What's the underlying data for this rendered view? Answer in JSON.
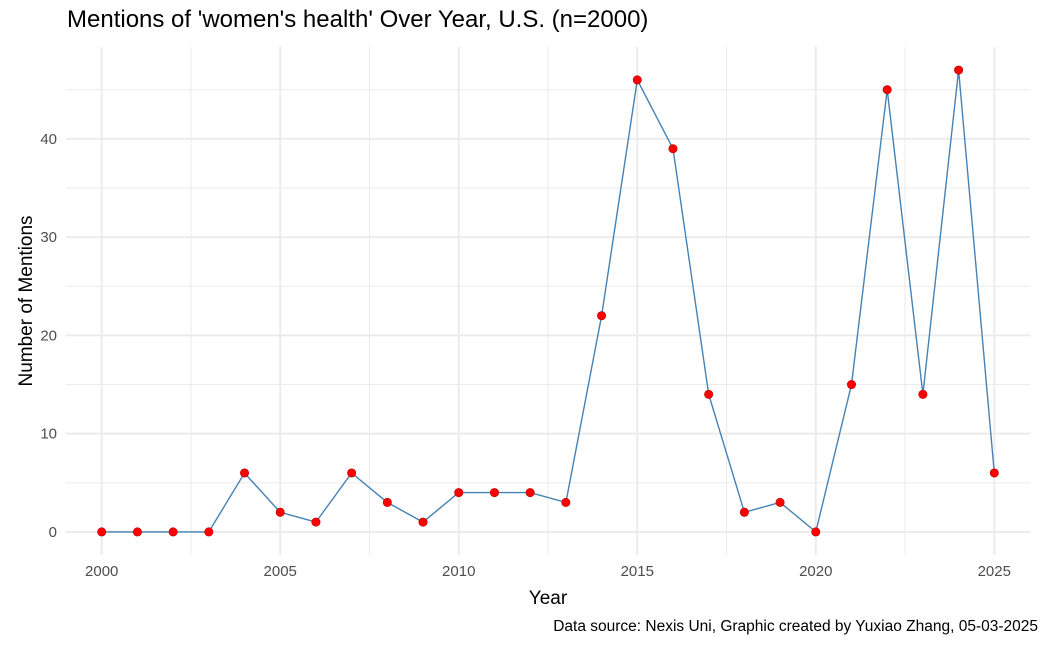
{
  "title": "Mentions of 'women's health' Over Year, U.S. (n=2000)",
  "caption": "Data source: Nexis Uni, Graphic created by Yuxiao Zhang, 05-03-2025",
  "chart_data": {
    "type": "line",
    "title": "Mentions of 'women's health' Over Year, U.S. (n=2000)",
    "xlabel": "Year",
    "ylabel": "Number of Mentions",
    "x": [
      2000,
      2001,
      2002,
      2003,
      2004,
      2005,
      2006,
      2007,
      2008,
      2009,
      2010,
      2011,
      2012,
      2013,
      2014,
      2015,
      2016,
      2017,
      2018,
      2019,
      2020,
      2021,
      2022,
      2023,
      2024,
      2025
    ],
    "y": [
      0,
      0,
      0,
      0,
      6,
      2,
      1,
      6,
      3,
      1,
      4,
      4,
      4,
      3,
      22,
      46,
      39,
      14,
      2,
      3,
      0,
      15,
      45,
      14,
      47,
      6
    ],
    "xlim": [
      1999,
      2026
    ],
    "ylim": [
      -2.35,
      49.35
    ],
    "xticks": [
      2000,
      2005,
      2010,
      2015,
      2020,
      2025
    ],
    "yticks": [
      0,
      10,
      20,
      30,
      40
    ],
    "grid": true,
    "line_color": "#4682b4",
    "point_color": "#ff0000",
    "point_outline": "#b30000",
    "grid_color": "#ebebeb"
  }
}
